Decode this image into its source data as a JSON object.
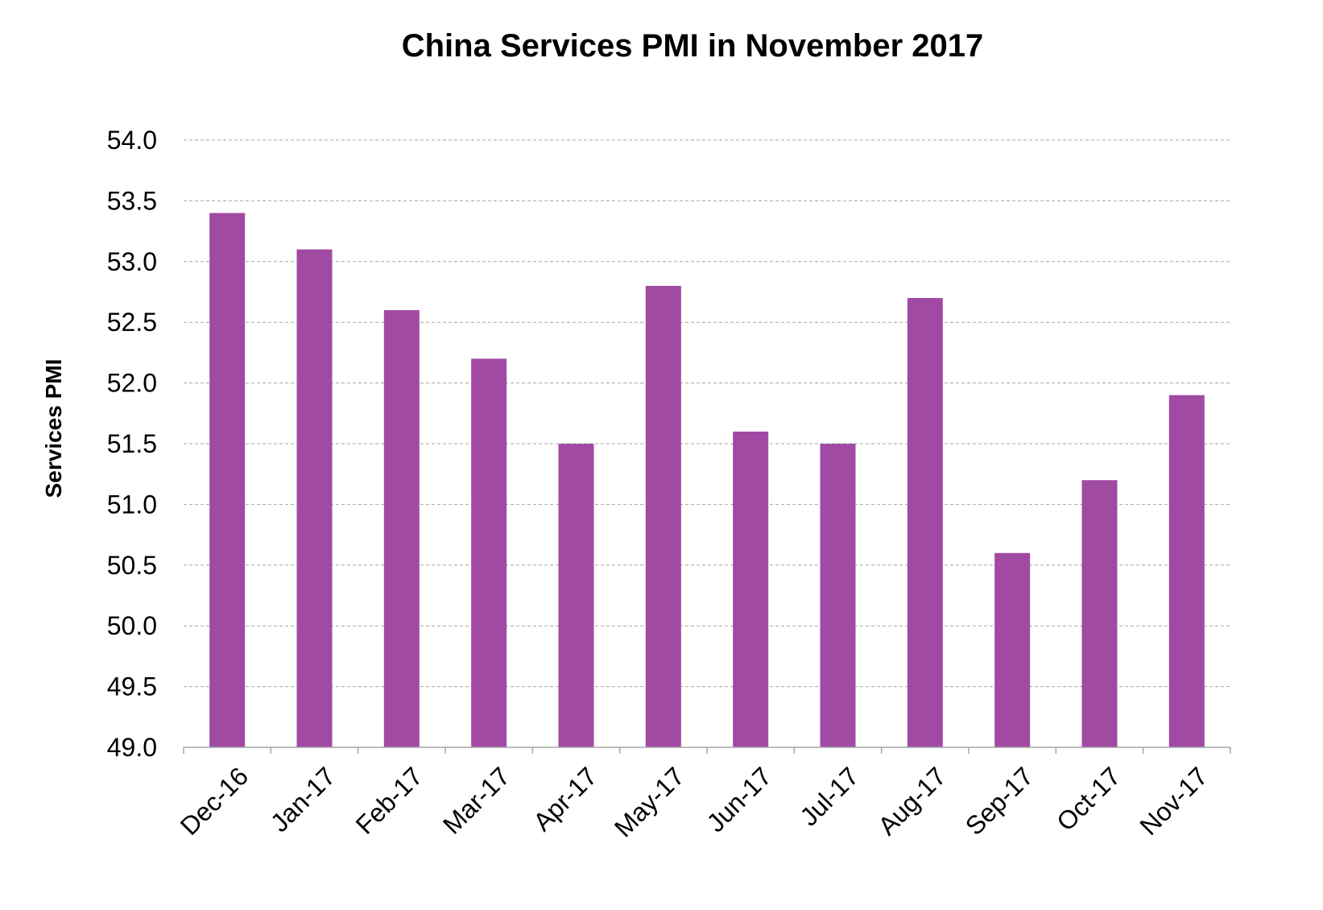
{
  "chart_data": {
    "type": "bar",
    "title": "China Services PMI in November 2017",
    "ylabel": "Services PMI",
    "xlabel": "",
    "categories": [
      "Dec-16",
      "Jan-17",
      "Feb-17",
      "Mar-17",
      "Apr-17",
      "May-17",
      "Jun-17",
      "Jul-17",
      "Aug-17",
      "Sep-17",
      "Oct-17",
      "Nov-17"
    ],
    "values": [
      53.4,
      53.1,
      52.6,
      52.2,
      51.5,
      52.8,
      51.6,
      51.5,
      52.7,
      50.6,
      51.2,
      51.9
    ],
    "ylim": [
      49.0,
      54.0
    ],
    "yticks": [
      "49.0",
      "49.5",
      "50.0",
      "50.5",
      "51.0",
      "51.5",
      "52.0",
      "52.5",
      "53.0",
      "53.5",
      "54.0"
    ],
    "grid": true,
    "bar_color": "#a04aa3"
  }
}
